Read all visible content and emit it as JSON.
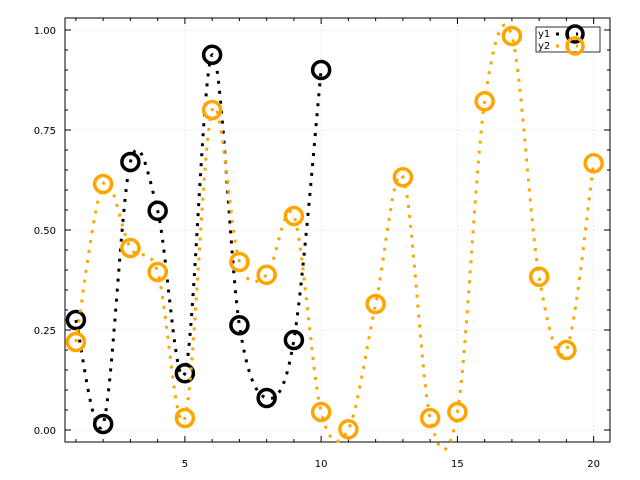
{
  "chart_data": {
    "type": "line",
    "title": "",
    "xlabel": "",
    "ylabel": "",
    "xlim": [
      0.6,
      20.6
    ],
    "ylim": [
      -0.03,
      1.03
    ],
    "grid": true,
    "legend_placement": "top-right",
    "x_ticks": [
      5,
      10,
      15,
      20
    ],
    "y_ticks": [
      0.0,
      0.25,
      0.5,
      0.75,
      1.0
    ],
    "x_tick_labels": [
      "5",
      "10",
      "15",
      "20"
    ],
    "y_tick_labels": [
      "0.00",
      "0.25",
      "0.50",
      "0.75",
      "1.00"
    ],
    "series": [
      {
        "name": "y1",
        "color": "#000000",
        "line_style": "dotted",
        "marker": "open-circle",
        "x": [
          1,
          2,
          3,
          4,
          5,
          6,
          7,
          8,
          9,
          10
        ],
        "y": [
          0.275,
          0.015,
          0.67,
          0.548,
          0.142,
          0.938,
          0.262,
          0.08,
          0.225,
          0.9
        ]
      },
      {
        "name": "y2",
        "color": "#ffa500",
        "line_style": "dotted",
        "marker": "open-circle",
        "x": [
          1,
          2,
          3,
          4,
          5,
          6,
          7,
          8,
          9,
          10,
          11,
          12,
          13,
          14,
          15,
          16,
          17,
          18,
          19,
          20
        ],
        "y": [
          0.22,
          0.615,
          0.455,
          0.395,
          0.03,
          0.8,
          0.42,
          0.388,
          0.535,
          0.045,
          0.002,
          0.315,
          0.632,
          0.03,
          0.045,
          0.822,
          0.985,
          0.383,
          0.2,
          0.667
        ]
      }
    ]
  }
}
